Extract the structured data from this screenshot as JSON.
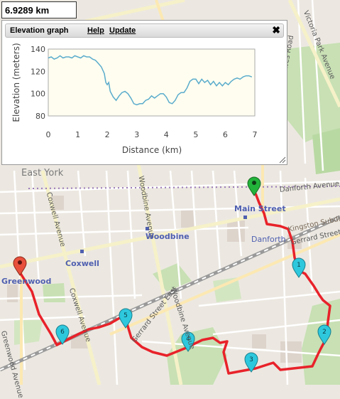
{
  "distance_box": {
    "value": "6.9289 km"
  },
  "elevation_panel": {
    "title": "Elevation graph",
    "help_label": "Help",
    "update_label": "Update",
    "close_icon": "close-icon"
  },
  "chart_data": {
    "type": "line",
    "xlabel": "Distance (km)",
    "ylabel": "Elevation (meters)",
    "xlim": [
      0,
      7
    ],
    "ylim": [
      80,
      140
    ],
    "xticks": [
      0,
      1,
      2,
      3,
      4,
      5,
      6,
      7
    ],
    "yticks": [
      80,
      100,
      120,
      140
    ],
    "line_color": "#5aaccc",
    "plot_background": "#fffdf0",
    "x": [
      0,
      0.1,
      0.2,
      0.3,
      0.4,
      0.5,
      0.6,
      0.7,
      0.8,
      0.9,
      1.0,
      1.1,
      1.2,
      1.3,
      1.4,
      1.5,
      1.6,
      1.7,
      1.8,
      1.9,
      1.95,
      2.0,
      2.05,
      2.1,
      2.2,
      2.3,
      2.4,
      2.5,
      2.6,
      2.7,
      2.8,
      2.9,
      3.0,
      3.1,
      3.2,
      3.3,
      3.4,
      3.5,
      3.6,
      3.7,
      3.8,
      3.9,
      4.0,
      4.1,
      4.2,
      4.3,
      4.4,
      4.5,
      4.6,
      4.7,
      4.8,
      4.9,
      5.0,
      5.1,
      5.2,
      5.3,
      5.4,
      5.5,
      5.6,
      5.7,
      5.8,
      5.9,
      6.0,
      6.1,
      6.2,
      6.3,
      6.4,
      6.5,
      6.6,
      6.7,
      6.8,
      6.9
    ],
    "y": [
      132,
      133,
      131,
      132,
      134,
      132,
      133,
      133,
      132,
      134,
      133,
      132,
      134,
      133,
      133,
      131,
      130,
      127,
      124,
      118,
      110,
      108,
      110,
      102,
      97,
      94,
      98,
      101,
      102,
      100,
      96,
      91,
      90,
      91,
      91,
      94,
      95,
      98,
      96,
      98,
      100,
      100,
      97,
      92,
      91,
      94,
      99,
      101,
      101,
      105,
      111,
      113,
      113,
      109,
      113,
      110,
      112,
      108,
      111,
      107,
      110,
      107,
      110,
      108,
      111,
      113,
      114,
      113,
      115,
      116,
      116,
      115
    ]
  },
  "map": {
    "neighbourhood_label": "East York",
    "streets": [
      "Victoria Park Avenue",
      "Dawes Road",
      "Coxwell Avenue",
      "Woodbine Avenue",
      "Danforth Avenue",
      "Gerrard Street East",
      "Greenwood Avenue"
    ],
    "stations": [
      "Main Street",
      "Woodbine",
      "Coxwell",
      "Greenwood"
    ],
    "place_labels": [
      "Danforth"
    ],
    "rail_label": "Kingston Subdivision",
    "route_color": "#e8222a",
    "start_marker_color": "#22b33a",
    "end_marker_color": "#e8503c",
    "waypoint_color": "#2ec8dd",
    "waypoints": [
      "1",
      "2",
      "3",
      "4",
      "5",
      "6"
    ]
  }
}
